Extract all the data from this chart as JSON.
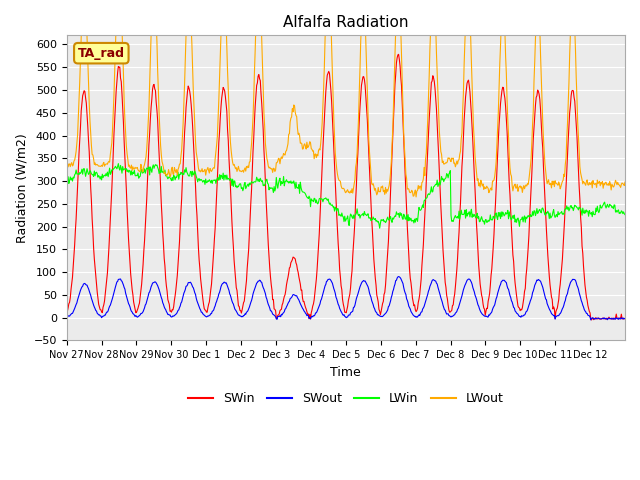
{
  "title": "Alfalfa Radiation",
  "xlabel": "Time",
  "ylabel": "Radiation (W/m2)",
  "ylim": [
    -50,
    620
  ],
  "yticks": [
    -50,
    0,
    50,
    100,
    150,
    200,
    250,
    300,
    350,
    400,
    450,
    500,
    550,
    600
  ],
  "xtick_labels": [
    "Nov 27",
    "Nov 28",
    "Nov 29",
    "Nov 30",
    "Dec 1",
    "Dec 2",
    "Dec 3",
    "Dec 4",
    "Dec 5",
    "Dec 6",
    "Dec 7",
    "Dec 8",
    "Dec 9",
    "Dec 10",
    "Dec 11",
    "Dec 12"
  ],
  "colors": {
    "SWin": "#ff0000",
    "SWout": "#0000ff",
    "LWin": "#00ff00",
    "LWout": "#ffaa00",
    "plot_bg": "#ebebeb"
  },
  "annotation_text": "TA_rad",
  "annotation_bg": "#ffff99",
  "annotation_border": "#cc8800",
  "n_days": 16,
  "dt_hours": 0.5,
  "peak_heights_SW": [
    500,
    550,
    510,
    505,
    505,
    535,
    130,
    540,
    530,
    580,
    530,
    520,
    505,
    500,
    500,
    0
  ],
  "peak_heights_SWout": [
    75,
    85,
    78,
    78,
    78,
    82,
    50,
    85,
    82,
    90,
    83,
    85,
    83,
    83,
    85,
    0
  ]
}
